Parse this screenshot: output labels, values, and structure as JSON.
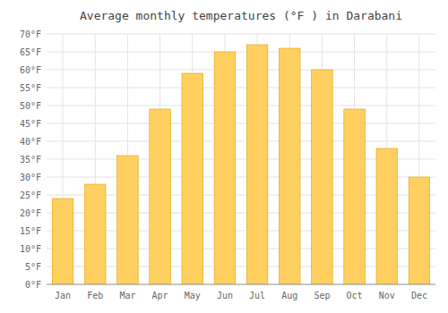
{
  "chart_data": {
    "type": "bar",
    "title": "Average monthly temperatures (°F ) in Darabani",
    "categories": [
      "Jan",
      "Feb",
      "Mar",
      "Apr",
      "May",
      "Jun",
      "Jul",
      "Aug",
      "Sep",
      "Oct",
      "Nov",
      "Dec"
    ],
    "values": [
      24,
      28,
      36,
      49,
      59,
      65,
      67,
      66,
      60,
      49,
      38,
      30
    ],
    "color": "#FFD060",
    "ylim": [
      0,
      70
    ],
    "yticks": [
      {
        "value": 0,
        "label": "0°F"
      },
      {
        "value": 5,
        "label": "5°F"
      },
      {
        "value": 10,
        "label": "10°F"
      },
      {
        "value": 15,
        "label": "15°F"
      },
      {
        "value": 20,
        "label": "20°F"
      },
      {
        "value": 25,
        "label": "25°F"
      },
      {
        "value": 30,
        "label": "30°F"
      },
      {
        "value": 35,
        "label": "35°F"
      },
      {
        "value": 40,
        "label": "40°F"
      },
      {
        "value": 45,
        "label": "45°F"
      },
      {
        "value": 50,
        "label": "50°F"
      },
      {
        "value": 55,
        "label": "55°F"
      },
      {
        "value": 60,
        "label": "60°F"
      },
      {
        "value": 65,
        "label": "65°F"
      },
      {
        "value": 70,
        "label": "70°F"
      }
    ],
    "grid": true
  }
}
